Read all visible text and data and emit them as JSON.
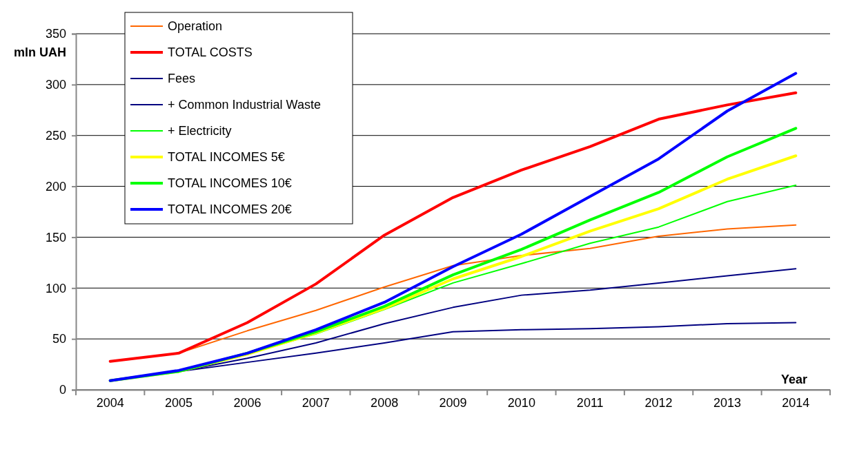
{
  "chart_data": {
    "type": "line",
    "xlabel": "Year",
    "ylabel": "mln UAH",
    "categories": [
      "2004",
      "2005",
      "2006",
      "2007",
      "2008",
      "2009",
      "2010",
      "2011",
      "2012",
      "2013",
      "2014"
    ],
    "ylim": [
      0,
      350
    ],
    "yticks": [
      0,
      50,
      100,
      150,
      200,
      250,
      300,
      350
    ],
    "grid": "y",
    "legend": "top left",
    "marker": "none",
    "line_style": "solid",
    "series": [
      {
        "name": "Operation",
        "color": "#ff6600",
        "values": [
          28,
          36,
          58,
          78,
          101,
          122,
          132,
          139,
          151,
          158,
          162
        ]
      },
      {
        "name": "TOTAL COSTS",
        "color": "#ff0000",
        "values": [
          28,
          36,
          66,
          104,
          152,
          189,
          216,
          239,
          266,
          280,
          292
        ]
      },
      {
        "name": "Fees",
        "color": "#000080",
        "values": [
          9,
          18,
          27,
          36,
          46,
          57,
          59,
          60,
          62,
          65,
          66
        ]
      },
      {
        "name": "+ Common Industrial Waste",
        "color": "#000080",
        "values": [
          9,
          18,
          31,
          46,
          65,
          81,
          93,
          98,
          105,
          112,
          119
        ]
      },
      {
        "name": "+ Electricity",
        "color": "#00ff00",
        "values": [
          9,
          18,
          35,
          55,
          79,
          105,
          124,
          144,
          160,
          185,
          201
        ]
      },
      {
        "name": "TOTAL INCOMES 5€",
        "color": "#ffff00",
        "values": [
          9,
          18,
          35,
          56,
          80,
          109,
          131,
          156,
          178,
          207,
          230
        ]
      },
      {
        "name": "TOTAL INCOMES 10€",
        "color": "#00ff00",
        "values": [
          9,
          18,
          36,
          57,
          82,
          113,
          138,
          167,
          194,
          229,
          257
        ]
      },
      {
        "name": "TOTAL INCOMES 20€",
        "color": "#0000ff",
        "values": [
          9,
          19,
          36,
          59,
          86,
          121,
          153,
          190,
          227,
          274,
          311
        ]
      }
    ]
  }
}
